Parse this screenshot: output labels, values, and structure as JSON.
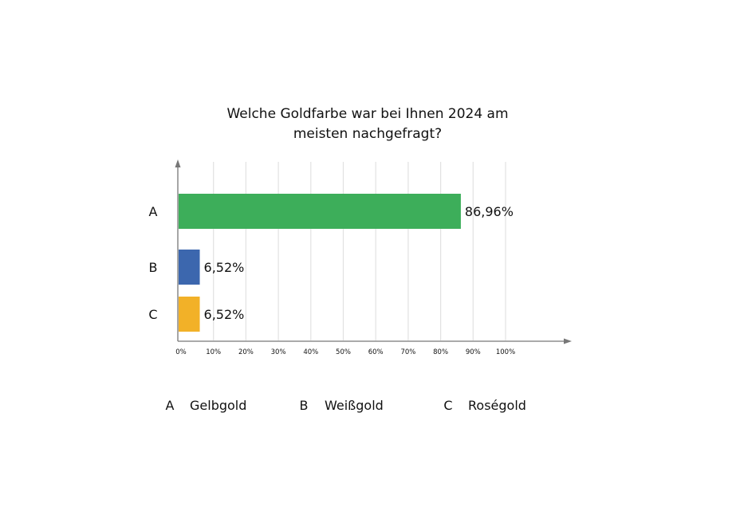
{
  "chart_data": {
    "type": "bar",
    "orientation": "horizontal",
    "title_lines": [
      "Welche Goldfarbe war bei Ihnen 2024 am",
      "meisten nachgefragt?"
    ],
    "categories": [
      "A",
      "B",
      "C"
    ],
    "values": [
      86.96,
      6.52,
      6.52
    ],
    "value_labels": [
      "86,96%",
      "6,52%",
      "6,52%"
    ],
    "colors": [
      "#3dae5a",
      "#3c67ae",
      "#f2b128"
    ],
    "xlim": [
      0,
      100
    ],
    "x_ticks": [
      0,
      10,
      20,
      30,
      40,
      50,
      60,
      70,
      80,
      90,
      100
    ],
    "x_tick_labels": [
      "0%",
      "10%",
      "20%",
      "30%",
      "40%",
      "50%",
      "60%",
      "70%",
      "80%",
      "90%",
      "100%"
    ],
    "grid": true,
    "legend_placement": "bottom",
    "legend": [
      {
        "key": "A",
        "label": "Gelbgold"
      },
      {
        "key": "B",
        "label": "Weißgold"
      },
      {
        "key": "C",
        "label": "Roségold"
      }
    ]
  }
}
